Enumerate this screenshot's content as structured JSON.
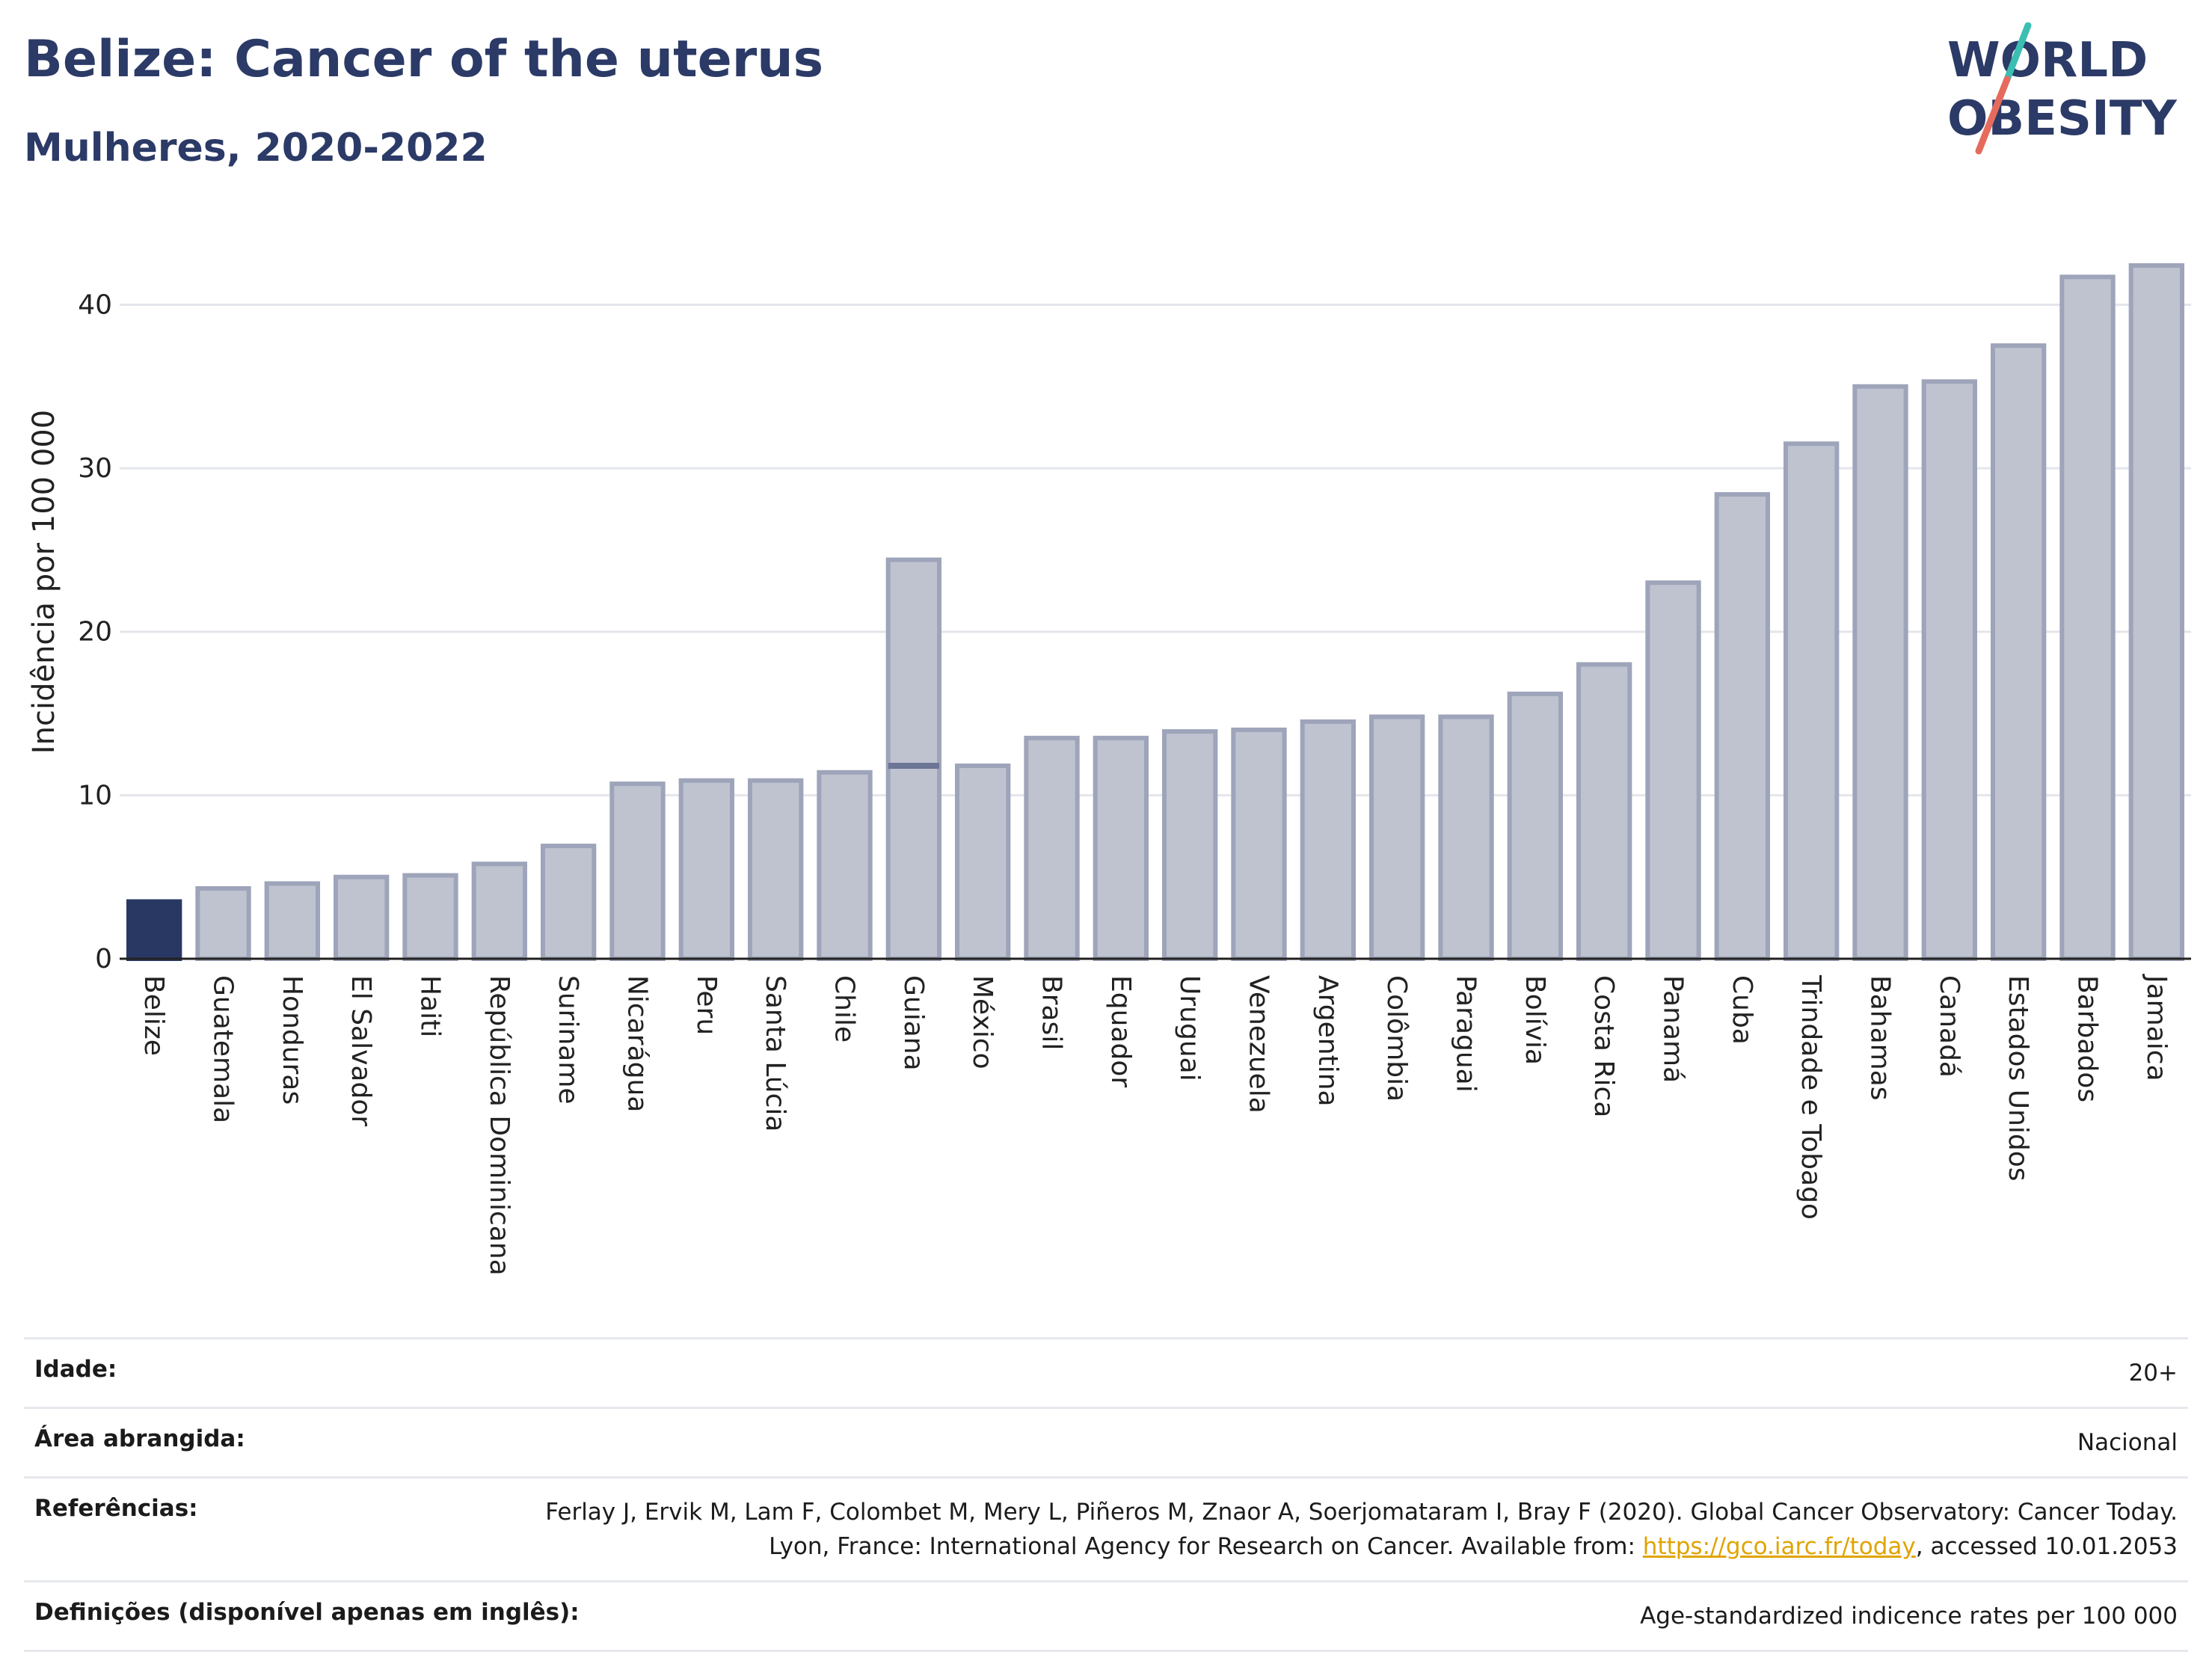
{
  "header": {
    "title": "Belize: Cancer of the uterus",
    "subtitle": "Mulheres, 2020-2022"
  },
  "logo": {
    "line1": "WORLD",
    "line2": "OBESITY"
  },
  "chart_data": {
    "type": "bar",
    "ylabel": "Incidência por 100 000",
    "ylim": [
      0,
      44
    ],
    "yticks": [
      0,
      10,
      20,
      30,
      40
    ],
    "grid": true,
    "categories": [
      "Belize",
      "Guatemala",
      "Honduras",
      "El Salvador",
      "Haiti",
      "República Dominicana",
      "Suriname",
      "Nicarágua",
      "Peru",
      "Santa Lúcia",
      "Chile",
      "Guiana",
      "México",
      "Brasil",
      "Equador",
      "Uruguai",
      "Venezuela",
      "Argentina",
      "Colômbia",
      "Paraguai",
      "Bolívia",
      "Costa Rica",
      "Panamá",
      "Cuba",
      "Trindade e Tobago",
      "Bahamas",
      "Canadá",
      "Estados Unidos",
      "Barbados",
      "Jamaica"
    ],
    "values": [
      3.5,
      4.3,
      4.6,
      5.0,
      5.1,
      5.8,
      6.9,
      10.7,
      10.9,
      10.9,
      11.4,
      24.4,
      11.8,
      13.5,
      13.5,
      13.9,
      14.0,
      14.5,
      14.8,
      14.8,
      16.2,
      18.0,
      23.0,
      28.4,
      31.5,
      35.0,
      35.3,
      37.5,
      41.7,
      42.4
    ],
    "overlay_lines": [
      {
        "category": "Guiana",
        "value": 11.8
      }
    ],
    "highlight": "Belize",
    "colors": {
      "highlight": "#293763",
      "bar": "#bfc3d0",
      "bar_edge": "#9ea4b9",
      "overlay": "#6d7596"
    }
  },
  "meta": {
    "rows": [
      {
        "key": "Idade:",
        "value": "20+"
      },
      {
        "key": "Área abrangida:",
        "value": "Nacional"
      },
      {
        "key": "Referências:",
        "value": "Ferlay J, Ervik M, Lam F, Colombet M, Mery L, Piñeros M, Znaor A, Soerjomataram I, Bray F (2020). Global Cancer Observatory: Cancer Today. Lyon, France: International Agency for Research on Cancer. Available from:",
        "link": "https://gco.iarc.fr/today",
        "suffix": ", accessed 10.01.2053"
      },
      {
        "key": "Definições (disponível apenas em inglês):",
        "value": "Age-standardized indicence rates per 100 000"
      }
    ]
  }
}
